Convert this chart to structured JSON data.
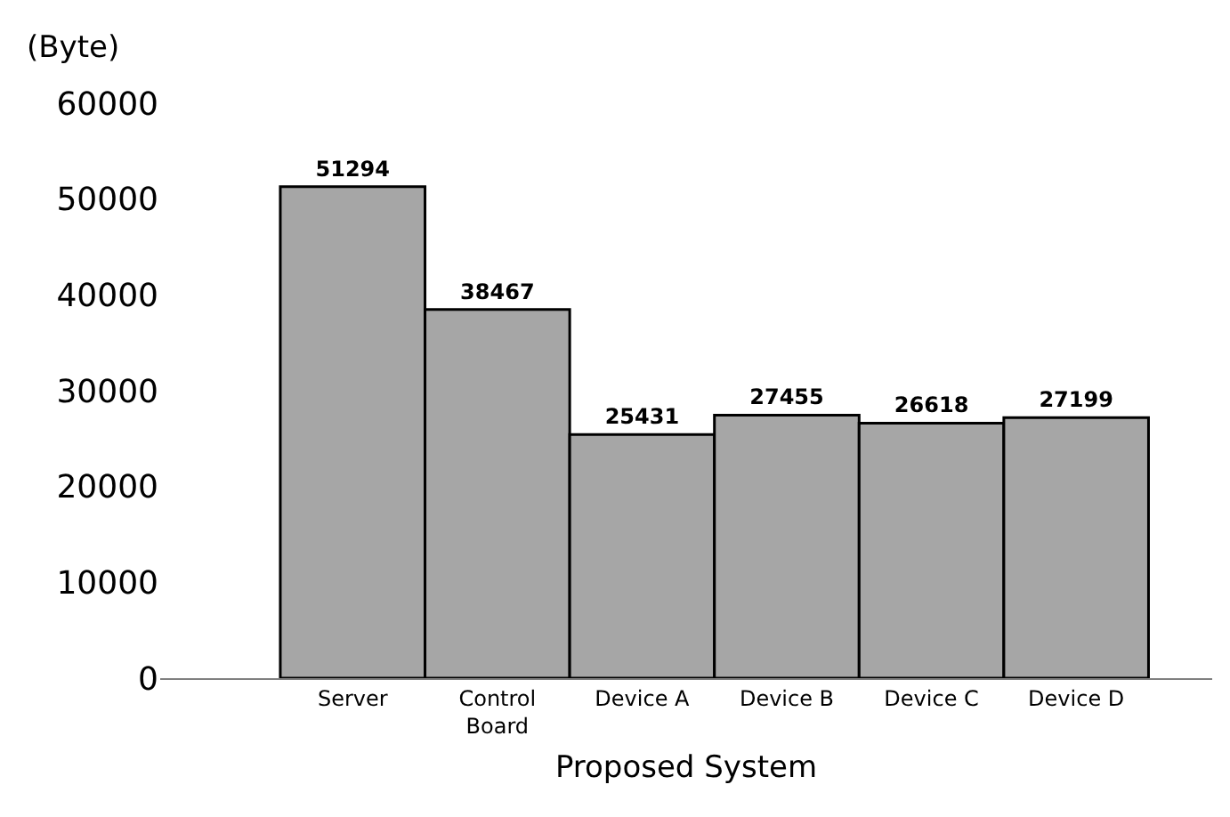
{
  "chart_data": {
    "type": "bar",
    "xlabel": "Proposed System",
    "ylabel": "(Byte)",
    "categories": [
      "Server",
      "Control Board",
      "Device A",
      "Device B",
      "Device C",
      "Device D"
    ],
    "values": [
      51294,
      38467,
      25431,
      27455,
      26618,
      27199
    ],
    "color": "#a6a6a6",
    "ylim": [
      0,
      60000
    ],
    "yticks": [
      0,
      10000,
      20000,
      30000,
      40000,
      50000,
      60000
    ],
    "data_labels": true
  }
}
